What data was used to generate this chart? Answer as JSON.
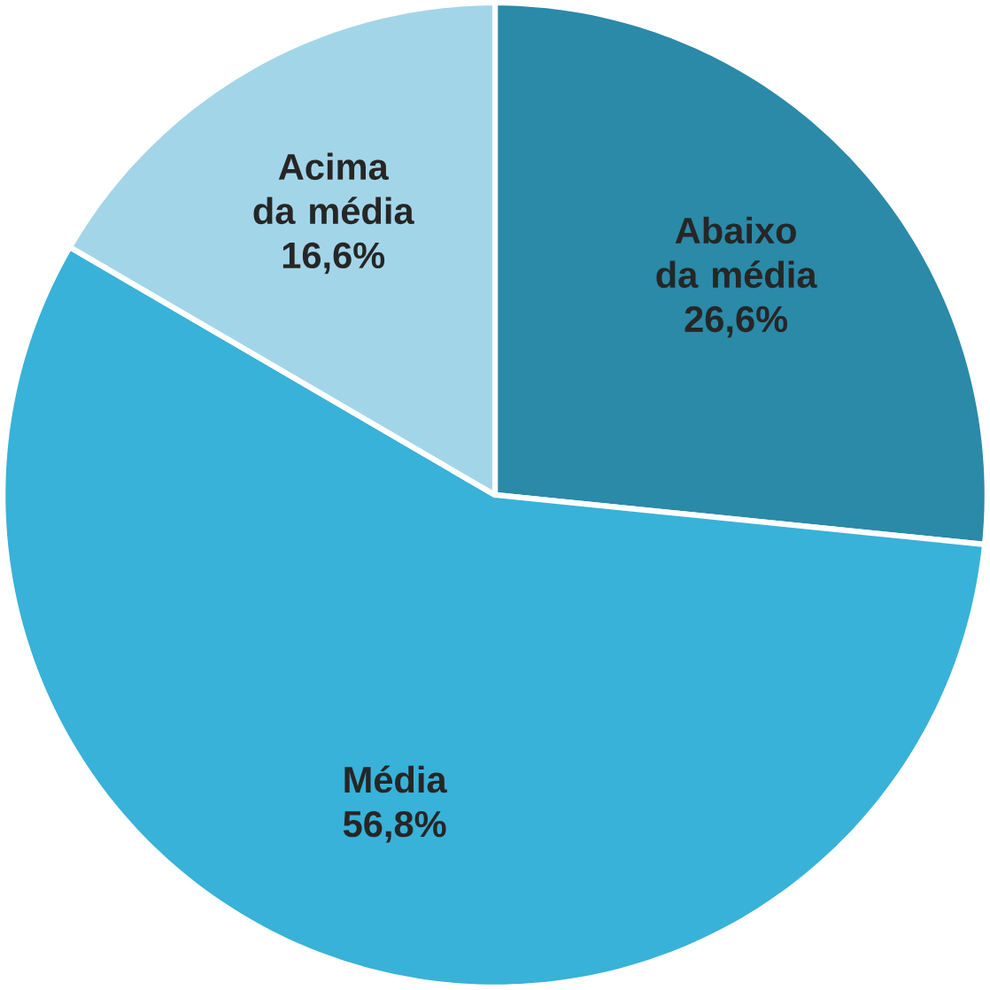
{
  "chart_data": {
    "type": "pie",
    "categories": [
      "Abaixo da média",
      "Média",
      "Acima da média"
    ],
    "values": [
      26.6,
      56.8,
      16.6
    ],
    "colors": [
      "#2a8aa8",
      "#38b2d8",
      "#a3d5e8"
    ],
    "value_labels": [
      "26,6%",
      "56,8%",
      "16,6%"
    ]
  }
}
